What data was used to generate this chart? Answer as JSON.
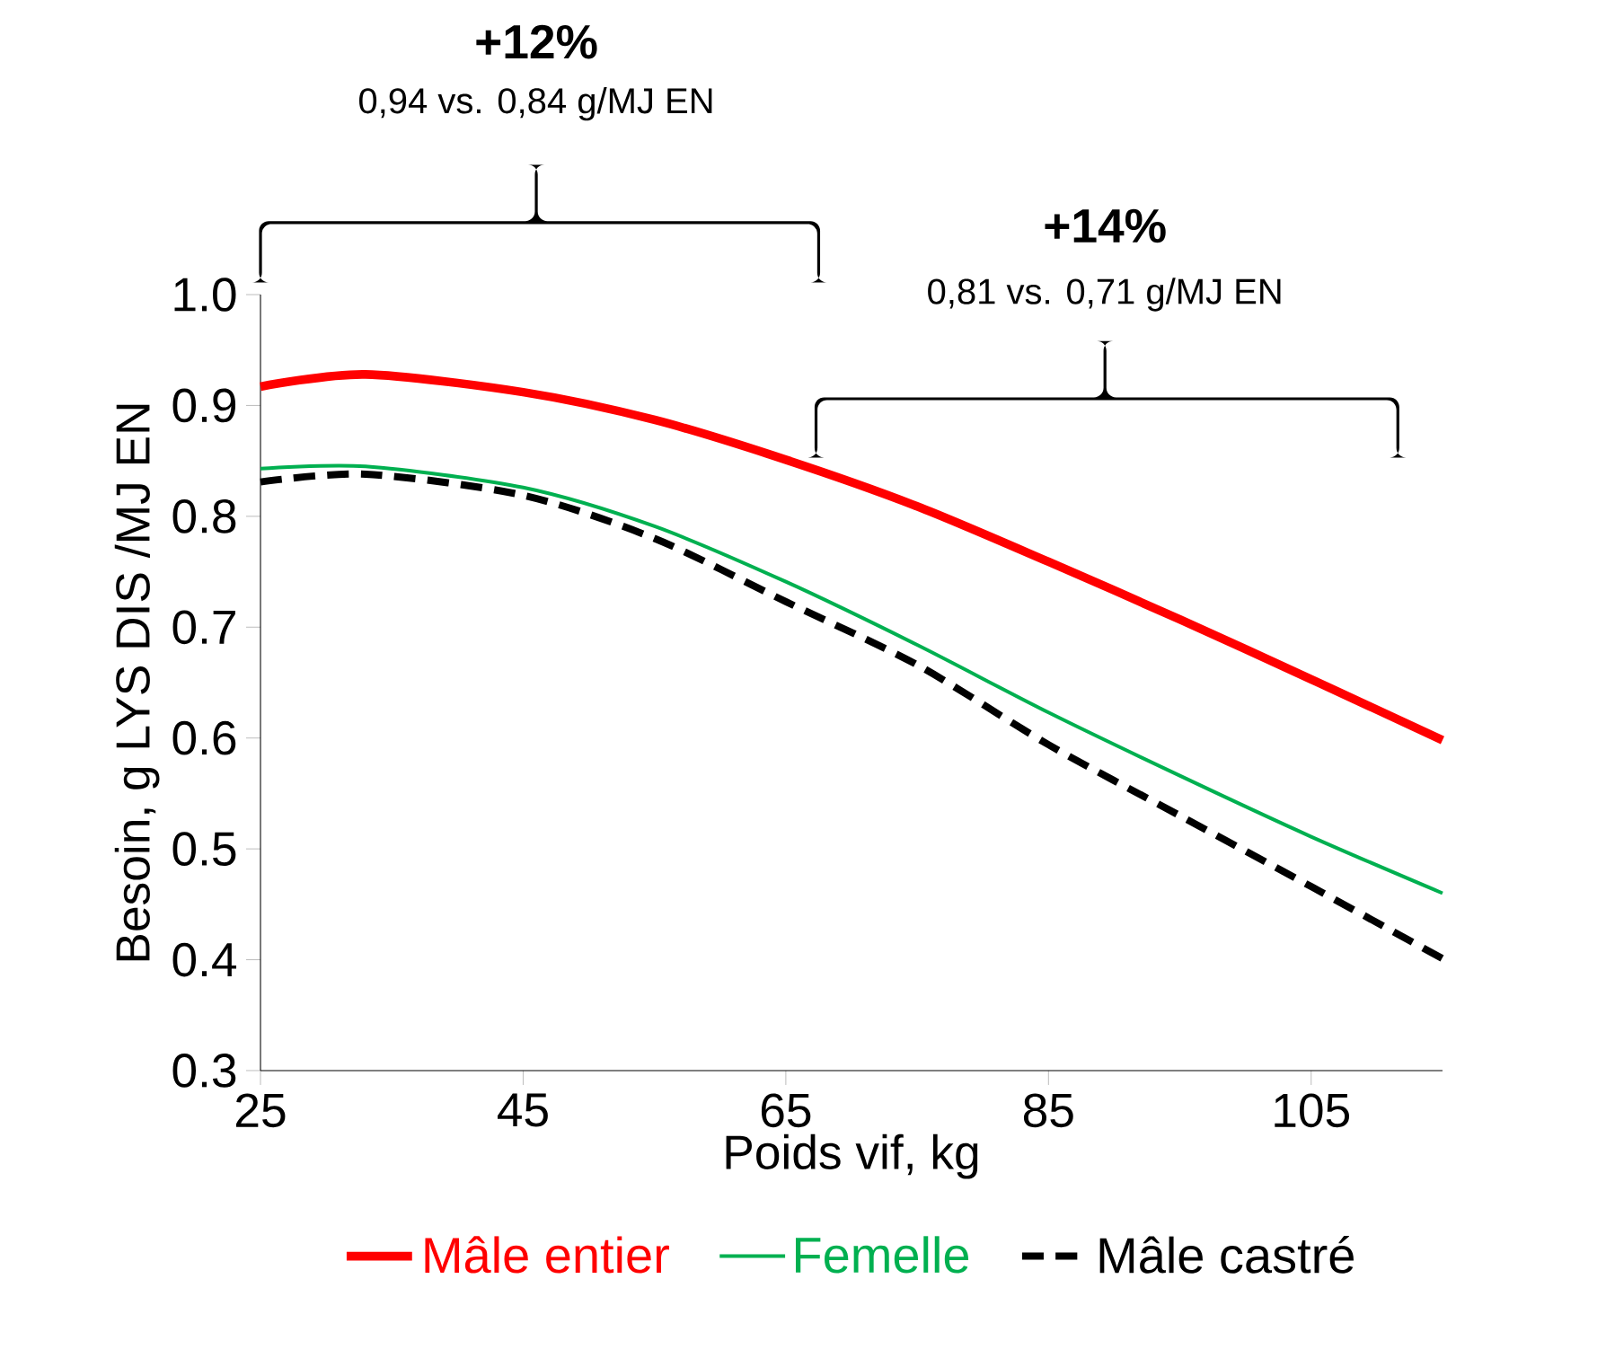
{
  "chart_data": {
    "type": "line",
    "xlabel": "Poids vif, kg",
    "ylabel": "Besoin, g LYS DIS /MJ EN",
    "x": [
      25,
      33,
      45,
      55,
      65,
      75,
      85,
      95,
      105,
      115
    ],
    "xlim": [
      25,
      115
    ],
    "xticks": [
      25,
      45,
      65,
      85,
      105
    ],
    "ylim": [
      0.3,
      1.0
    ],
    "yticks": [
      {
        "value": 0.3,
        "label": "0.3"
      },
      {
        "value": 0.4,
        "label": "0.4"
      },
      {
        "value": 0.5,
        "label": "0.5"
      },
      {
        "value": 0.6,
        "label": "0.6"
      },
      {
        "value": 0.7,
        "label": "0.7"
      },
      {
        "value": 0.8,
        "label": "0.8"
      },
      {
        "value": 0.9,
        "label": "0.9"
      },
      {
        "value": 1.0,
        "label": "1.0"
      }
    ],
    "grid": false,
    "legend": "bottom",
    "marker": "none",
    "series": [
      {
        "name": "Mâle entier",
        "color": "#ff0000",
        "line_style": "solid",
        "values": [
          0.917,
          0.928,
          0.912,
          0.887,
          0.851,
          0.809,
          0.759,
          0.707,
          0.653,
          0.598
        ]
      },
      {
        "name": "Femelle",
        "color": "#00b050",
        "line_style": "solid",
        "values": [
          0.843,
          0.845,
          0.826,
          0.791,
          0.741,
          0.684,
          0.623,
          0.566,
          0.511,
          0.46
        ]
      },
      {
        "name": "Mâle castré",
        "color": "#000000",
        "line_style": "dashed",
        "values": [
          0.831,
          0.838,
          0.819,
          0.78,
          0.723,
          0.666,
          0.594,
          0.53,
          0.466,
          0.401
        ]
      }
    ],
    "annotations": [
      "**+12%**",
      "0,94 vs. 0,84 g/MJ EN",
      "**+14%**",
      "0,81 vs. 0,71 g/MJ EN"
    ]
  }
}
